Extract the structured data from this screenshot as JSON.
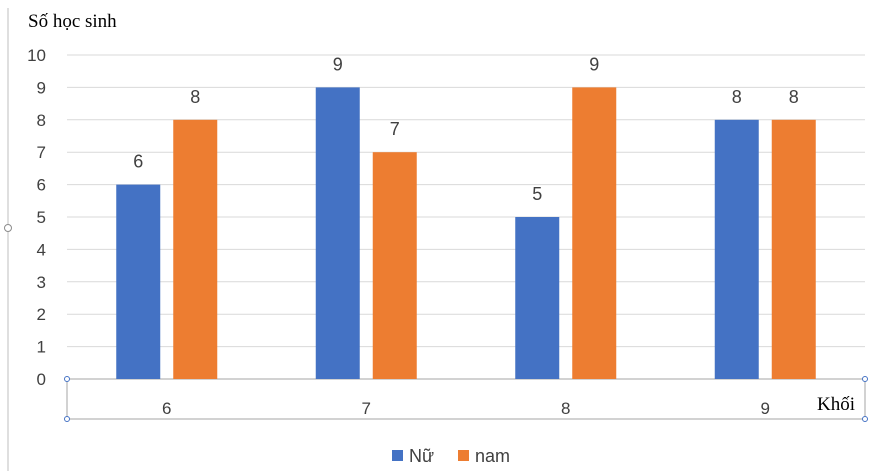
{
  "chart_data": {
    "type": "bar",
    "ylabel": "Số học sinh",
    "xlabel": "Khối",
    "categories": [
      "6",
      "7",
      "8",
      "9"
    ],
    "series": [
      {
        "name": "Nữ",
        "values": [
          6,
          9,
          5,
          8
        ]
      },
      {
        "name": "nam",
        "values": [
          8,
          7,
          9,
          8
        ]
      }
    ],
    "ylim": [
      0,
      10
    ],
    "yticks": [
      "0",
      "1",
      "2",
      "3",
      "4",
      "5",
      "6",
      "7",
      "8",
      "9",
      "10"
    ],
    "grid": true,
    "legend_position": "bottom",
    "data_labels": true,
    "colors": [
      "#4472C4",
      "#ED7D31"
    ]
  }
}
